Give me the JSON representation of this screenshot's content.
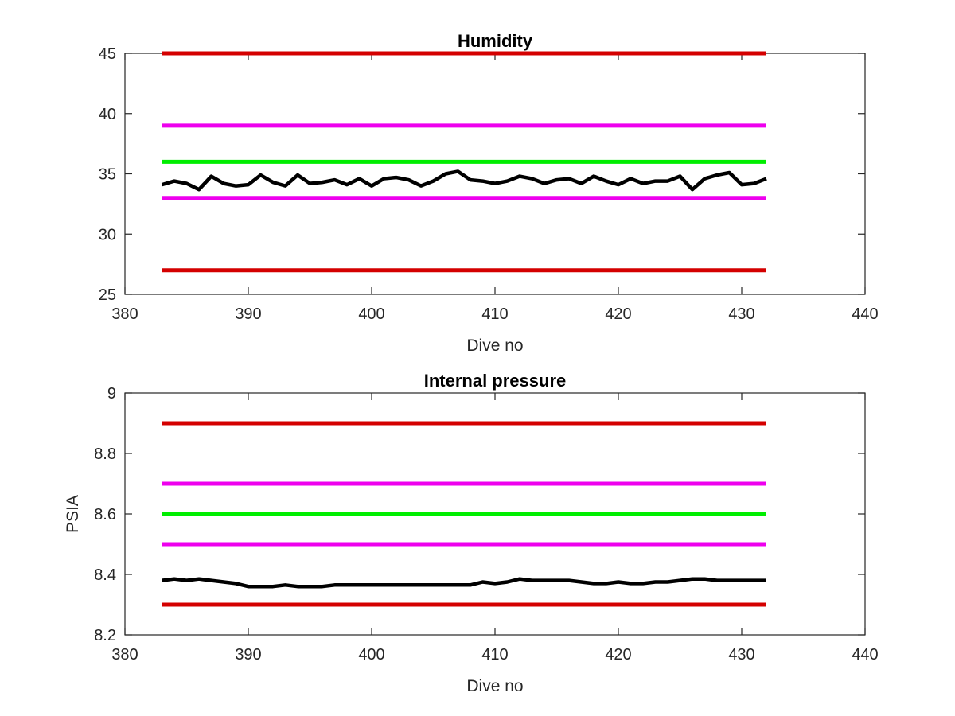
{
  "chart_data": [
    {
      "type": "line",
      "title": "Humidity",
      "xlabel": "Dive no",
      "ylabel": "",
      "xlim": [
        380,
        440
      ],
      "ylim": [
        25,
        45
      ],
      "x_ticks": [
        380,
        390,
        400,
        410,
        420,
        430,
        440
      ],
      "y_ticks": [
        25,
        30,
        35,
        40,
        45
      ],
      "grid": false,
      "threshold_lines": [
        {
          "y": 45,
          "x_range": [
            383,
            432
          ],
          "color": "#d40000"
        },
        {
          "y": 39,
          "x_range": [
            383,
            432
          ],
          "color": "#ee00ee"
        },
        {
          "y": 36,
          "x_range": [
            383,
            432
          ],
          "color": "#00ee00"
        },
        {
          "y": 33,
          "x_range": [
            383,
            432
          ],
          "color": "#ee00ee"
        },
        {
          "y": 27,
          "x_range": [
            383,
            432
          ],
          "color": "#d40000"
        }
      ],
      "series": [
        {
          "color": "#000000",
          "x": [
            383,
            384,
            385,
            386,
            387,
            388,
            389,
            390,
            391,
            392,
            393,
            394,
            395,
            396,
            397,
            398,
            399,
            400,
            401,
            402,
            403,
            404,
            405,
            406,
            407,
            408,
            409,
            410,
            411,
            412,
            413,
            414,
            415,
            416,
            417,
            418,
            419,
            420,
            421,
            422,
            423,
            424,
            425,
            426,
            427,
            428,
            429,
            430,
            431,
            432
          ],
          "y": [
            34.1,
            34.4,
            34.2,
            33.7,
            34.8,
            34.2,
            34.0,
            34.1,
            34.9,
            34.3,
            34.0,
            34.9,
            34.2,
            34.3,
            34.5,
            34.1,
            34.6,
            34.0,
            34.6,
            34.7,
            34.5,
            34.0,
            34.4,
            35.0,
            35.2,
            34.5,
            34.4,
            34.2,
            34.4,
            34.8,
            34.6,
            34.2,
            34.5,
            34.6,
            34.2,
            34.8,
            34.4,
            34.1,
            34.6,
            34.2,
            34.4,
            34.4,
            34.8,
            33.7,
            34.6,
            34.9,
            35.1,
            34.1,
            34.2,
            34.6
          ]
        }
      ]
    },
    {
      "type": "line",
      "title": "Internal pressure",
      "xlabel": "Dive no",
      "ylabel": "PSIA",
      "xlim": [
        380,
        440
      ],
      "ylim": [
        8.2,
        9.0
      ],
      "x_ticks": [
        380,
        390,
        400,
        410,
        420,
        430,
        440
      ],
      "y_ticks": [
        8.2,
        8.4,
        8.6,
        8.8,
        9.0
      ],
      "y_tick_labels": [
        "8.2",
        "8.4",
        "8.6",
        "8.8",
        "9"
      ],
      "grid": false,
      "threshold_lines": [
        {
          "y": 8.9,
          "x_range": [
            383,
            432
          ],
          "color": "#d40000"
        },
        {
          "y": 8.7,
          "x_range": [
            383,
            432
          ],
          "color": "#ee00ee"
        },
        {
          "y": 8.6,
          "x_range": [
            383,
            432
          ],
          "color": "#00ee00"
        },
        {
          "y": 8.5,
          "x_range": [
            383,
            432
          ],
          "color": "#ee00ee"
        },
        {
          "y": 8.3,
          "x_range": [
            383,
            432
          ],
          "color": "#d40000"
        }
      ],
      "series": [
        {
          "color": "#000000",
          "x": [
            383,
            384,
            385,
            386,
            387,
            388,
            389,
            390,
            391,
            392,
            393,
            394,
            395,
            396,
            397,
            398,
            399,
            400,
            401,
            402,
            403,
            404,
            405,
            406,
            407,
            408,
            409,
            410,
            411,
            412,
            413,
            414,
            415,
            416,
            417,
            418,
            419,
            420,
            421,
            422,
            423,
            424,
            425,
            426,
            427,
            428,
            429,
            430,
            431,
            432
          ],
          "y": [
            8.38,
            8.385,
            8.38,
            8.385,
            8.38,
            8.375,
            8.37,
            8.36,
            8.36,
            8.36,
            8.365,
            8.36,
            8.36,
            8.36,
            8.365,
            8.365,
            8.365,
            8.365,
            8.365,
            8.365,
            8.365,
            8.365,
            8.365,
            8.365,
            8.365,
            8.365,
            8.375,
            8.37,
            8.375,
            8.385,
            8.38,
            8.38,
            8.38,
            8.38,
            8.375,
            8.37,
            8.37,
            8.375,
            8.37,
            8.37,
            8.375,
            8.375,
            8.38,
            8.385,
            8.385,
            8.38,
            8.38,
            8.38,
            8.38,
            8.38
          ]
        }
      ]
    }
  ]
}
